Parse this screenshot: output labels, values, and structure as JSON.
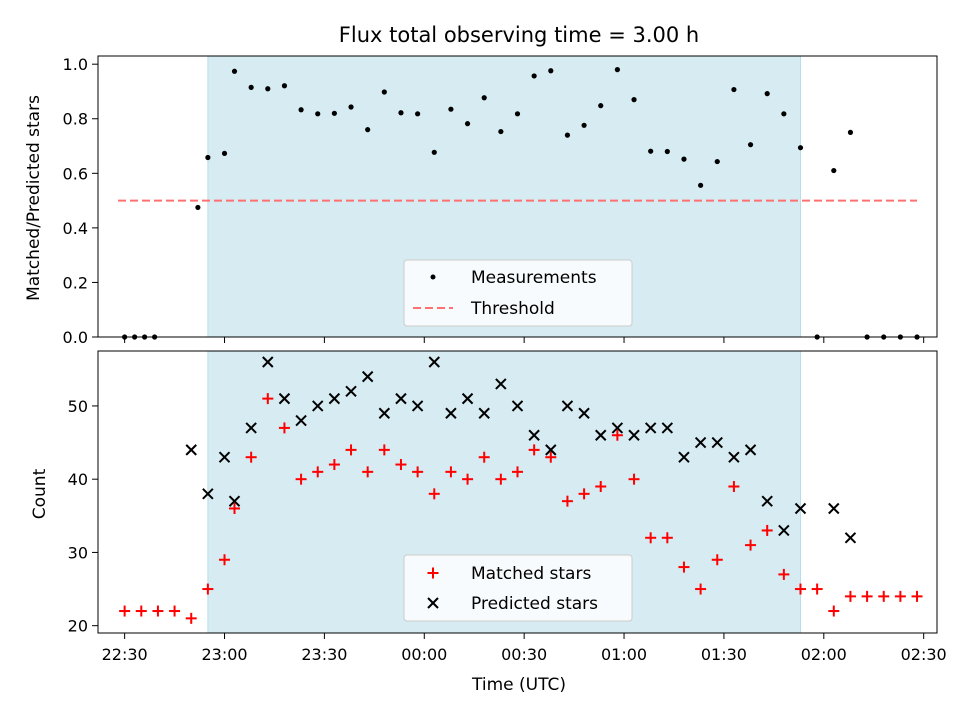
{
  "chart_data": [
    {
      "type": "scatter",
      "title": "Flux total observing time = 3.00 h",
      "ylabel": "Matched/Predicted stars",
      "xlabel": "",
      "ylim": [
        0,
        1.03
      ],
      "xlim": [
        "22:22",
        "02:34"
      ],
      "yticks": [
        "0.0",
        "0.2",
        "0.4",
        "0.6",
        "0.8",
        "1.0"
      ],
      "shaded_interval": [
        "22:55",
        "01:53"
      ],
      "legend": "bottom-center",
      "series": [
        {
          "name": "Measurements",
          "marker": "dot",
          "color": "#000000",
          "points": [
            [
              "22:30",
              0.0
            ],
            [
              "22:33",
              0.0
            ],
            [
              "22:36",
              0.0
            ],
            [
              "22:39",
              0.0
            ],
            [
              "22:52",
              0.475
            ],
            [
              "22:55",
              0.658
            ],
            [
              "23:00",
              0.673
            ],
            [
              "23:03",
              0.974
            ],
            [
              "23:08",
              0.915
            ],
            [
              "23:13",
              0.91
            ],
            [
              "23:18",
              0.921
            ],
            [
              "23:23",
              0.833
            ],
            [
              "23:28",
              0.818
            ],
            [
              "23:33",
              0.82
            ],
            [
              "23:38",
              0.843
            ],
            [
              "23:43",
              0.76
            ],
            [
              "23:48",
              0.898
            ],
            [
              "23:53",
              0.822
            ],
            [
              "23:58",
              0.818
            ],
            [
              "00:03",
              0.677
            ],
            [
              "00:08",
              0.835
            ],
            [
              "00:13",
              0.782
            ],
            [
              "00:18",
              0.877
            ],
            [
              "00:23",
              0.753
            ],
            [
              "00:28",
              0.818
            ],
            [
              "00:33",
              0.957
            ],
            [
              "00:38",
              0.976
            ],
            [
              "00:43",
              0.74
            ],
            [
              "00:48",
              0.776
            ],
            [
              "00:53",
              0.848
            ],
            [
              "00:58",
              0.98
            ],
            [
              "01:03",
              0.87
            ],
            [
              "01:08",
              0.681
            ],
            [
              "01:13",
              0.68
            ],
            [
              "01:18",
              0.652
            ],
            [
              "01:23",
              0.556
            ],
            [
              "01:28",
              0.643
            ],
            [
              "01:33",
              0.907
            ],
            [
              "01:38",
              0.705
            ],
            [
              "01:43",
              0.892
            ],
            [
              "01:48",
              0.818
            ],
            [
              "01:53",
              0.694
            ],
            [
              "01:58",
              0.0
            ],
            [
              "02:03",
              0.61
            ],
            [
              "02:08",
              0.75
            ],
            [
              "02:13",
              0.0
            ],
            [
              "02:18",
              0.0
            ],
            [
              "02:23",
              0.0
            ],
            [
              "02:28",
              0.0
            ]
          ]
        },
        {
          "name": "Threshold",
          "line": "dashed",
          "color": "#ff7070",
          "points": [
            [
              "22:28",
              0.5
            ],
            [
              "02:28",
              0.5
            ]
          ]
        }
      ]
    },
    {
      "type": "scatter",
      "title": "",
      "ylabel": "Count",
      "xlabel": "Time (UTC)",
      "ylim": [
        19,
        57.5
      ],
      "xlim": [
        "22:22",
        "02:34"
      ],
      "yticks": [
        "20",
        "30",
        "40",
        "50"
      ],
      "xticks": [
        "22:30",
        "23:00",
        "23:30",
        "00:00",
        "00:30",
        "01:00",
        "01:30",
        "02:00",
        "02:30"
      ],
      "shaded_interval": [
        "22:55",
        "01:53"
      ],
      "legend": "bottom-center",
      "series": [
        {
          "name": "Matched stars",
          "marker": "plus",
          "color": "#ff0000",
          "points": [
            [
              "22:30",
              22
            ],
            [
              "22:35",
              22
            ],
            [
              "22:40",
              22
            ],
            [
              "22:45",
              22
            ],
            [
              "22:50",
              21
            ],
            [
              "22:55",
              25
            ],
            [
              "23:00",
              29
            ],
            [
              "23:03",
              36
            ],
            [
              "23:08",
              43
            ],
            [
              "23:13",
              51
            ],
            [
              "23:18",
              47
            ],
            [
              "23:23",
              40
            ],
            [
              "23:28",
              41
            ],
            [
              "23:33",
              42
            ],
            [
              "23:38",
              44
            ],
            [
              "23:43",
              41
            ],
            [
              "23:48",
              44
            ],
            [
              "23:53",
              42
            ],
            [
              "23:58",
              41
            ],
            [
              "00:03",
              38
            ],
            [
              "00:08",
              41
            ],
            [
              "00:13",
              40
            ],
            [
              "00:18",
              43
            ],
            [
              "00:23",
              40
            ],
            [
              "00:28",
              41
            ],
            [
              "00:33",
              44
            ],
            [
              "00:38",
              43
            ],
            [
              "00:43",
              37
            ],
            [
              "00:48",
              38
            ],
            [
              "00:53",
              39
            ],
            [
              "00:58",
              46
            ],
            [
              "01:03",
              40
            ],
            [
              "01:08",
              32
            ],
            [
              "01:13",
              32
            ],
            [
              "01:18",
              28
            ],
            [
              "01:23",
              25
            ],
            [
              "01:28",
              29
            ],
            [
              "01:33",
              39
            ],
            [
              "01:38",
              31
            ],
            [
              "01:43",
              33
            ],
            [
              "01:48",
              27
            ],
            [
              "01:53",
              25
            ],
            [
              "01:58",
              25
            ],
            [
              "02:03",
              22
            ],
            [
              "02:08",
              24
            ],
            [
              "02:13",
              24
            ],
            [
              "02:18",
              24
            ],
            [
              "02:23",
              24
            ],
            [
              "02:28",
              24
            ]
          ]
        },
        {
          "name": "Predicted stars",
          "marker": "x",
          "color": "#000000",
          "points": [
            [
              "22:50",
              44
            ],
            [
              "22:55",
              38
            ],
            [
              "23:00",
              43
            ],
            [
              "23:03",
              37
            ],
            [
              "23:08",
              47
            ],
            [
              "23:13",
              56
            ],
            [
              "23:18",
              51
            ],
            [
              "23:23",
              48
            ],
            [
              "23:28",
              50
            ],
            [
              "23:33",
              51
            ],
            [
              "23:38",
              52
            ],
            [
              "23:43",
              54
            ],
            [
              "23:48",
              49
            ],
            [
              "23:53",
              51
            ],
            [
              "23:58",
              50
            ],
            [
              "00:03",
              56
            ],
            [
              "00:08",
              49
            ],
            [
              "00:13",
              51
            ],
            [
              "00:18",
              49
            ],
            [
              "00:23",
              53
            ],
            [
              "00:28",
              50
            ],
            [
              "00:33",
              46
            ],
            [
              "00:38",
              44
            ],
            [
              "00:43",
              50
            ],
            [
              "00:48",
              49
            ],
            [
              "00:53",
              46
            ],
            [
              "00:58",
              47
            ],
            [
              "01:03",
              46
            ],
            [
              "01:08",
              47
            ],
            [
              "01:13",
              47
            ],
            [
              "01:18",
              43
            ],
            [
              "01:23",
              45
            ],
            [
              "01:28",
              45
            ],
            [
              "01:33",
              43
            ],
            [
              "01:38",
              44
            ],
            [
              "01:43",
              37
            ],
            [
              "01:48",
              33
            ],
            [
              "01:53",
              36
            ],
            [
              "02:03",
              36
            ],
            [
              "02:08",
              32
            ]
          ]
        }
      ]
    }
  ],
  "colors": {
    "shade": "#add8e6",
    "shade_alpha": 0.5,
    "threshold": "#ff7070",
    "matched": "#ff0000",
    "predicted": "#000000",
    "measurement": "#000000"
  }
}
